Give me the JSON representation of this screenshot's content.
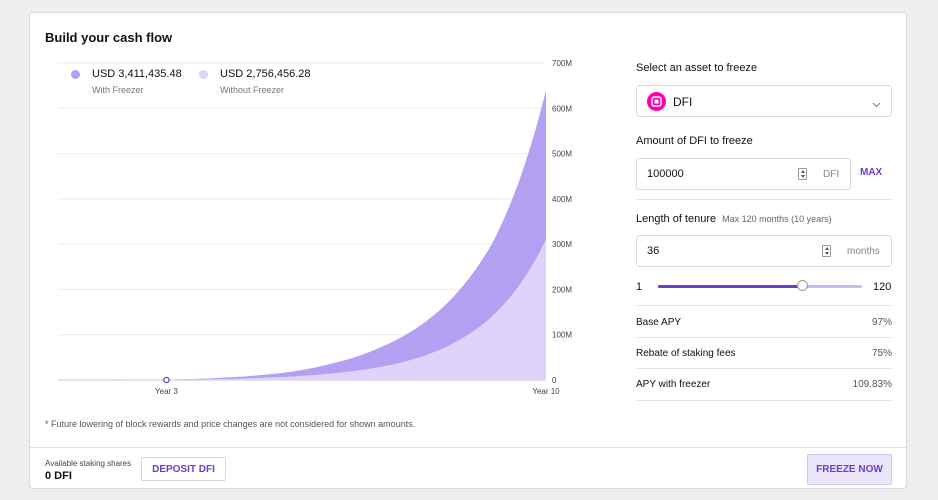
{
  "title": "Build your cash flow",
  "legend": {
    "with": {
      "value": "USD 3,411,435.48",
      "label": "With Freezer",
      "color": "#b3a0f2"
    },
    "without": {
      "value": "USD 2,756,456.28",
      "label": "Without Freezer",
      "color": "#ddd3fb"
    }
  },
  "chart_data": {
    "type": "area",
    "y_ticks": [
      "700M",
      "600M",
      "500M",
      "400M",
      "300M",
      "200M",
      "100M",
      "0"
    ],
    "x_ticks": [
      "Year 3",
      "Year 10"
    ],
    "ylim": [
      0,
      700
    ],
    "y_unit": "M",
    "xlim": [
      1,
      10
    ],
    "marker_year": 3,
    "grid": true,
    "series": [
      {
        "name": "With Freezer",
        "color": "#b3a0f2",
        "x": [
          1,
          3,
          4,
          5,
          6,
          7,
          8,
          9,
          10
        ],
        "values": [
          0,
          1,
          5,
          14,
          35,
          75,
          150,
          300,
          640
        ]
      },
      {
        "name": "Without Freezer",
        "color": "#ddd3fb",
        "x": [
          1,
          3,
          4,
          5,
          6,
          7,
          8,
          9,
          10
        ],
        "values": [
          0,
          0.5,
          2,
          6,
          14,
          30,
          65,
          140,
          310
        ]
      }
    ]
  },
  "footnote": "* Future lowering of block rewards and price changes are not considered for shown amounts.",
  "footer": {
    "available_label": "Available staking shares",
    "available_value": "0 DFI",
    "deposit_label": "DEPOSIT DFI",
    "freeze_label": "FREEZE NOW"
  },
  "panel": {
    "asset_label": "Select an asset to freeze",
    "asset_value": "DFI",
    "amount_label": "Amount of DFI to freeze",
    "amount_value": "100000",
    "amount_unit": "DFI",
    "max_label": "MAX",
    "tenure_label": "Length of tenure",
    "tenure_hint": "Max 120 months (10 years)",
    "tenure_value": "36",
    "tenure_unit": "months",
    "slider_min": "1",
    "slider_max": "120",
    "slider_level": 0.71,
    "stats": [
      {
        "label": "Base APY",
        "value": "97%"
      },
      {
        "label": "Rebate of staking fees",
        "value": "75%"
      },
      {
        "label": "APY with freezer",
        "value": "109.83%"
      }
    ]
  },
  "colors": {
    "accent": "#6b3dd1",
    "asset_icon": "#ff00af"
  },
  "icons": {
    "asset": "defichain-logo-icon",
    "dropdown": "chevron-down-icon",
    "stepper": "stepper-icon"
  }
}
